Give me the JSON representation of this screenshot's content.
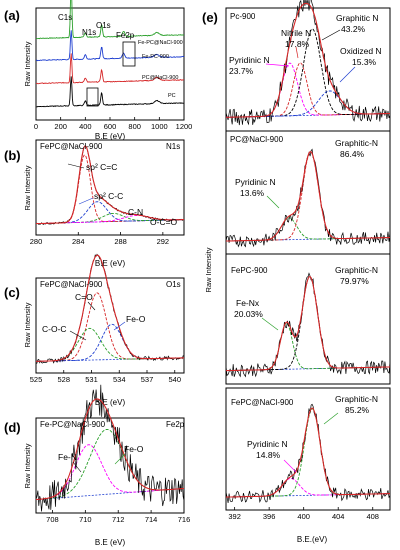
{
  "chart_data": [
    {
      "id": "a",
      "panel_label": "(a)",
      "type": "line",
      "xlabel": "B.E (eV)",
      "ylabel": "Raw Intensity",
      "xlim": [
        0,
        1200
      ],
      "xticks": [
        0,
        200,
        400,
        600,
        800,
        1000,
        1200
      ],
      "peak_labels": [
        "C1s",
        "N1s",
        "O1s",
        "Fe2p"
      ],
      "series": [
        {
          "name": "Fe-PC@NaCl-900",
          "color": "#2ca02c",
          "offset": 3.1
        },
        {
          "name": "Fe-PC-900",
          "color": "#1f3fd0",
          "offset": 2.2
        },
        {
          "name": "PC@NaCl-900",
          "color": "#d62728",
          "offset": 1.25
        },
        {
          "name": "PC",
          "color": "#000000",
          "offset": 0.3
        }
      ]
    },
    {
      "id": "b",
      "panel_label": "(b)",
      "type": "line",
      "title": "FePC@NaCl-900",
      "region": "N1s",
      "xlabel": "B.E (eV)",
      "ylabel": "Raw Intensity",
      "xlim": [
        280,
        294
      ],
      "xticks": [
        280,
        284,
        288,
        292
      ],
      "annotations": [
        "sp² C=C",
        "sp² C-C",
        "C-N",
        "O-C=O"
      ],
      "components": [
        {
          "label": "sp² C=C",
          "center": 284.6,
          "height": 1.0,
          "width": 0.55,
          "color": "#d62728"
        },
        {
          "label": "sp² C-C",
          "center": 285.8,
          "height": 0.3,
          "width": 0.9,
          "color": "#1f3fd0"
        },
        {
          "label": "C-N",
          "center": 287.3,
          "height": 0.12,
          "width": 1.0,
          "color": "#2ca02c"
        },
        {
          "label": "O-C=O",
          "center": 289.5,
          "height": 0.08,
          "width": 1.2,
          "color": "#ff00ff"
        }
      ]
    },
    {
      "id": "c",
      "panel_label": "(c)",
      "type": "line",
      "title": "FePC@NaCl-900",
      "region": "O1s",
      "xlabel": "B.E (eV)",
      "ylabel": "Raw Intensity",
      "xlim": [
        525,
        541
      ],
      "xticks": [
        525,
        528,
        531,
        534,
        537,
        540
      ],
      "annotations": [
        "C=O",
        "C-O-C",
        "Fe-O"
      ],
      "components": [
        {
          "label": "C=O",
          "center": 531.6,
          "height": 0.95,
          "width": 1.0,
          "color": "#d62728"
        },
        {
          "label": "C-O-C",
          "center": 530.8,
          "height": 0.45,
          "width": 1.2,
          "color": "#2ca02c"
        },
        {
          "label": "Fe-O",
          "center": 533.2,
          "height": 0.5,
          "width": 1.1,
          "color": "#1f3fd0"
        }
      ]
    },
    {
      "id": "d",
      "panel_label": "(d)",
      "type": "line",
      "title": "Fe-PC@NaCl-900",
      "region": "Fe2p",
      "xlabel": "B.E (eV)",
      "ylabel": "Raw Intensity",
      "xlim": [
        707,
        716
      ],
      "xticks": [
        708,
        710,
        712,
        714,
        716
      ],
      "annotations": [
        "Fe-N",
        "Fe-O"
      ],
      "components": [
        {
          "label": "Fe-N",
          "center": 710.2,
          "height": 0.55,
          "width": 0.8,
          "color": "#ff00ff"
        },
        {
          "label": "Fe-O",
          "center": 711.3,
          "height": 0.7,
          "width": 1.0,
          "color": "#2ca02c"
        }
      ]
    },
    {
      "id": "e",
      "panel_label": "(e)",
      "type": "line",
      "xlabel": "B.E.(eV)",
      "ylabel": "Raw Intensity",
      "xlim": [
        391,
        410
      ],
      "xticks": [
        392,
        396,
        400,
        404,
        408
      ],
      "subpanels": [
        {
          "title": "Pc-900",
          "components": [
            {
              "label": "Pyridinic N",
              "percent": "23.7%",
              "center": 398.4,
              "height": 0.55,
              "width": 0.9,
              "color": "#ff00ff"
            },
            {
              "label": "Nitrile N",
              "percent": "17.8%",
              "center": 399.6,
              "height": 0.55,
              "width": 0.8,
              "color": "#d62728"
            },
            {
              "label": "Graphitic N",
              "percent": "43.2%",
              "center": 401.0,
              "height": 0.9,
              "width": 1.0,
              "color": "#000000"
            },
            {
              "label": "Oxidized N",
              "percent": "15.3%",
              "center": 403.0,
              "height": 0.25,
              "width": 1.3,
              "color": "#1f3fd0"
            }
          ]
        },
        {
          "title": "PC@NaCl-900",
          "components": [
            {
              "label": "Pyridinic N",
              "percent": "13.6%",
              "center": 398.3,
              "height": 0.25,
              "width": 0.9,
              "color": "#2ca02c"
            },
            {
              "label": "Graphitic-N",
              "percent": "86.4%",
              "center": 400.8,
              "height": 1.0,
              "width": 0.9,
              "color": "#d62728"
            }
          ]
        },
        {
          "title": "FePC-900",
          "components": [
            {
              "label": "Fe-Nx",
              "percent": "20.03%",
              "center": 398.0,
              "height": 0.5,
              "width": 0.7,
              "color": "#2ca02c"
            },
            {
              "label": "Graphitic-N",
              "percent": "79.97%",
              "center": 400.7,
              "height": 1.0,
              "width": 0.9,
              "color": "#000000"
            }
          ]
        },
        {
          "title": "FePC@NaCl-900",
          "components": [
            {
              "label": "Pyridinic N",
              "percent": "14.8%",
              "center": 398.5,
              "height": 0.2,
              "width": 1.0,
              "color": "#ff00ff"
            },
            {
              "label": "Graphitic-N",
              "percent": "85.2%",
              "center": 401.0,
              "height": 1.0,
              "width": 0.9,
              "color": "#2ca02c"
            }
          ]
        }
      ]
    }
  ]
}
